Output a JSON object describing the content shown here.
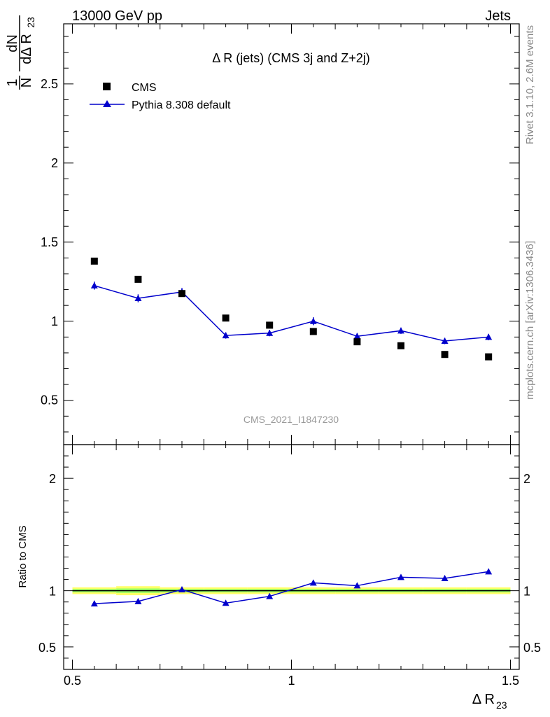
{
  "header": {
    "left": "13000 GeV pp",
    "right": "Jets"
  },
  "side_text": {
    "rivet": "Rivet 3.1.10,  2.6M events",
    "mcplots": "mcplots.cern.ch [arXiv:1306.3436]"
  },
  "chart_data": {
    "type": "scatter",
    "title": "Δ R (jets) (CMS 3j and Z+2j)",
    "watermark": "CMS_2021_I1847230",
    "ylabel_top": {
      "num": "1",
      "den": "N",
      "frac_num": "dN",
      "frac_den": "dΔ R",
      "frac_sub": "23"
    },
    "ylabel_ratio": "Ratio to CMS",
    "xlabel": {
      "main": "Δ R",
      "sub": "23"
    },
    "xlim": [
      0.48,
      1.52
    ],
    "ylim_main": [
      0.22,
      2.88
    ],
    "ylim_ratio": [
      0.3,
      2.3
    ],
    "xticks": [
      0.5,
      1,
      1.5
    ],
    "xtick_labels": [
      "0.5",
      "1",
      "1.5"
    ],
    "yticks_main": [
      0.5,
      1,
      1.5,
      2,
      2.5
    ],
    "ytick_labels_main": [
      "0.5",
      "1",
      "1.5",
      "2",
      "2.5"
    ],
    "yticks_ratio": [
      0.5,
      1,
      2
    ],
    "ytick_labels_ratio": [
      "0.5",
      "1",
      "2"
    ],
    "legend_position": "top-left",
    "x": [
      0.55,
      0.65,
      0.75,
      0.85,
      0.95,
      1.05,
      1.15,
      1.25,
      1.35,
      1.45
    ],
    "series": [
      {
        "name": "CMS",
        "color": "#000000",
        "marker": "square",
        "values": [
          1.38,
          1.265,
          1.175,
          1.02,
          0.975,
          0.935,
          0.87,
          0.845,
          0.79,
          0.775
        ]
      },
      {
        "name": "Pythia 8.308 default",
        "color": "#0000cc",
        "marker": "triangle",
        "values": [
          1.225,
          1.145,
          1.185,
          0.91,
          0.925,
          1.0,
          0.905,
          0.94,
          0.875,
          0.9
        ],
        "errors": [
          0.025,
          0.025,
          0.025,
          0.02,
          0.02,
          0.025,
          0.02,
          0.02,
          0.02,
          0.02
        ]
      }
    ],
    "ratio": {
      "values": [
        0.885,
        0.905,
        1.01,
        0.89,
        0.95,
        1.07,
        1.045,
        1.12,
        1.11,
        1.17
      ],
      "errors": [
        0.015,
        0.015,
        0.02,
        0.015,
        0.015,
        0.02,
        0.02,
        0.02,
        0.02,
        0.02
      ],
      "band_halfwidth": [
        0.03,
        0.04,
        0.03,
        0.03,
        0.03,
        0.03,
        0.03,
        0.03,
        0.03,
        0.03
      ],
      "band_colors": [
        "#ffff66",
        "#99ff66"
      ]
    }
  }
}
